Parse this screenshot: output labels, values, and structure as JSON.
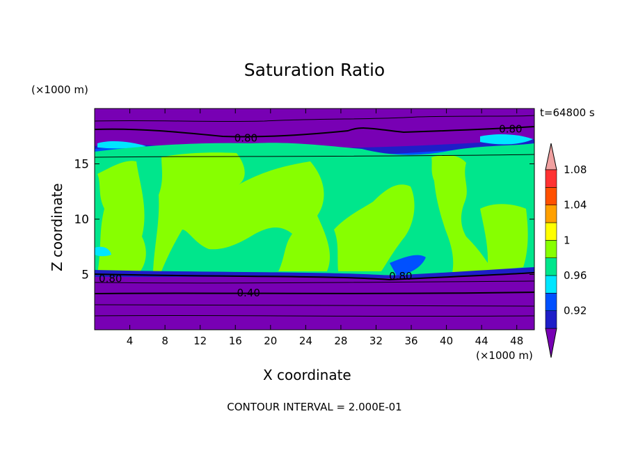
{
  "chart_data": {
    "type": "contour",
    "title": "Saturation Ratio",
    "xlabel": "X coordinate",
    "ylabel": "Z coordinate",
    "x_scale_label": "(×1000 m)",
    "y_scale_label": "(×1000 m)",
    "time_label": "t=64800 s",
    "footer": "CONTOUR INTERVAL = 2.000E-01",
    "xlim": [
      0,
      50
    ],
    "ylim": [
      0,
      20
    ],
    "x_ticks": [
      4,
      8,
      12,
      16,
      20,
      24,
      28,
      32,
      36,
      40,
      44,
      48
    ],
    "y_ticks": [
      5,
      10,
      15
    ],
    "colorbar": {
      "levels": [
        0.92,
        0.96,
        1,
        1.04,
        1.08
      ],
      "labels": [
        "0.92",
        "0.96",
        "1",
        "1.04",
        "1.08"
      ],
      "colors": [
        "#7800b4",
        "#1e1ec8",
        "#0050ff",
        "#00e6ff",
        "#00e68c",
        "#87ff00",
        "#ffff00",
        "#ffa000",
        "#ff5000",
        "#ff3232",
        "#f0a0a0"
      ]
    },
    "contour_labels": [
      {
        "text": "0.80",
        "x": 17.2,
        "z": 17.4
      },
      {
        "text": "0.80",
        "x": 47.3,
        "z": 18.2
      },
      {
        "text": "0.80",
        "x": 1.8,
        "z": 4.7
      },
      {
        "text": "0.80",
        "x": 34.8,
        "z": 4.9
      },
      {
        "text": "0.40",
        "x": 17.5,
        "z": 3.4
      }
    ]
  }
}
